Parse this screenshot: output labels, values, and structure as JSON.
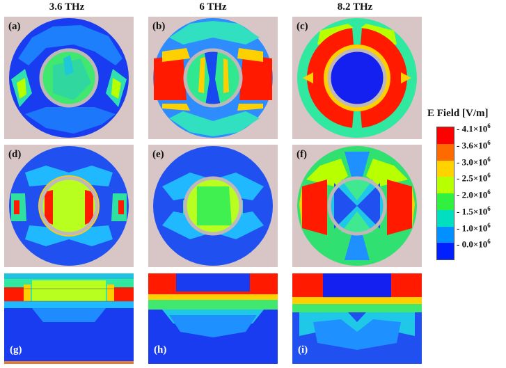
{
  "columns": [
    {
      "title": "3.6 THz"
    },
    {
      "title": "6 THz"
    },
    {
      "title": "8.2 THz"
    }
  ],
  "panels": [
    {
      "label": "(a)"
    },
    {
      "label": "(b)"
    },
    {
      "label": "(c)"
    },
    {
      "label": "(d)"
    },
    {
      "label": "(e)"
    },
    {
      "label": "(f)"
    },
    {
      "label": "(g)"
    },
    {
      "label": "(h)"
    },
    {
      "label": "(i)"
    }
  ],
  "legend": {
    "title": "E Field [V/m]",
    "ticks": [
      "4.1×10",
      "3.6×10",
      "3.0×10",
      "2.5×10",
      "2.0×10",
      "1.5×10",
      "1.0×10",
      "0.0×10"
    ],
    "exponent": "6",
    "colors": [
      "#ff0000",
      "#ff6a00",
      "#ffd200",
      "#b8ff00",
      "#30f040",
      "#00e0c0",
      "#0090ff",
      "#0020ff"
    ]
  }
}
